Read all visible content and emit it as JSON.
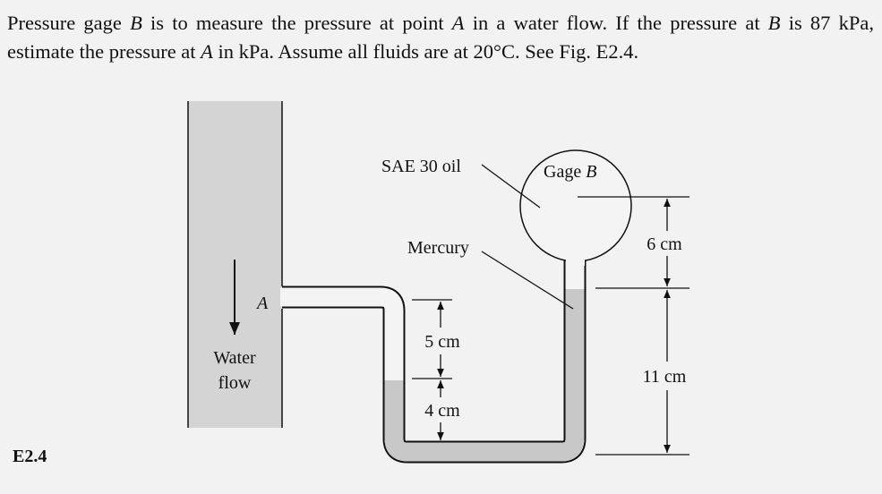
{
  "problem": {
    "segments": [
      "Pressure gage ",
      "B",
      " is to measure the pressure at point ",
      "A",
      " in a water flow. If the pressure at ",
      "B",
      " is 87 kPa, estimate the pressure at ",
      "A",
      " in kPa. Assume all fluids are at 20°C. See Fig. E2.4."
    ]
  },
  "figure": {
    "label": "E2.4",
    "labels": {
      "oil": "SAE 30 oil",
      "gage": "Gage ",
      "gage_letter": "B",
      "mercury": "Mercury",
      "point": "A",
      "water": "Water",
      "flow": "flow",
      "dim_6": "6 cm",
      "dim_5": "5 cm",
      "dim_11": "11 cm",
      "dim_4": "4 cm"
    }
  }
}
